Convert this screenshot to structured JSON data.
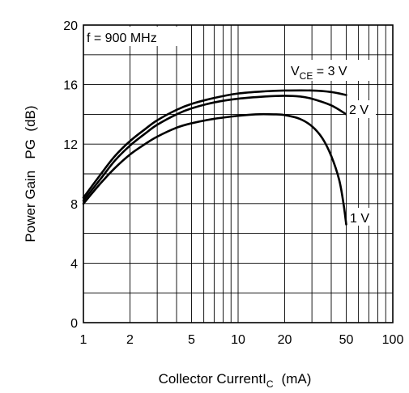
{
  "chart_data": {
    "type": "line",
    "xscale": "log",
    "xlim": [
      1,
      100
    ],
    "ylim": [
      0,
      20
    ],
    "xticks": [
      1,
      2,
      5,
      10,
      20,
      50,
      100
    ],
    "xtick_labels": [
      "1",
      "2",
      "5",
      "10",
      "20",
      "50",
      "100"
    ],
    "yticks": [
      0,
      4,
      8,
      12,
      16,
      20
    ],
    "ytick_labels": [
      "0",
      "4",
      "8",
      "12",
      "16",
      "20"
    ],
    "ylabel": "Power Gain   PG  (dB)",
    "xlabel": "Collector Current",
    "xlabel_symbol": "I",
    "xlabel_subscript": "C",
    "xlabel_unit": "(mA)",
    "condition_label": "f = 900 MHz",
    "grid": true,
    "series": [
      {
        "name": "3 V",
        "label_prefix": "V",
        "label_subscript": "CE",
        "label_suffix": " = 3 V",
        "x": [
          1,
          1.3,
          1.6,
          2,
          2.5,
          3,
          4,
          5,
          7,
          10,
          15,
          20,
          30,
          40,
          50
        ],
        "y": [
          8.4,
          10.0,
          11.2,
          12.2,
          13.0,
          13.6,
          14.3,
          14.7,
          15.1,
          15.4,
          15.55,
          15.6,
          15.6,
          15.5,
          15.3
        ]
      },
      {
        "name": "2 V",
        "label_text": "2 V",
        "x": [
          1,
          1.3,
          1.6,
          2,
          2.5,
          3,
          4,
          5,
          7,
          10,
          15,
          20,
          25,
          30,
          40,
          50
        ],
        "y": [
          8.2,
          9.7,
          10.9,
          11.9,
          12.7,
          13.3,
          14.0,
          14.4,
          14.8,
          15.05,
          15.2,
          15.25,
          15.2,
          15.05,
          14.6,
          14.0
        ]
      },
      {
        "name": "1 V",
        "label_text": "1 V",
        "x": [
          1,
          1.3,
          1.6,
          2,
          2.5,
          3,
          4,
          5,
          7,
          10,
          13,
          17,
          20,
          25,
          30,
          35,
          40,
          45,
          48,
          50
        ],
        "y": [
          8.0,
          9.4,
          10.4,
          11.3,
          12.0,
          12.5,
          13.1,
          13.4,
          13.7,
          13.9,
          14.0,
          14.0,
          13.95,
          13.7,
          13.2,
          12.4,
          11.2,
          9.6,
          8.0,
          6.6
        ]
      }
    ]
  }
}
